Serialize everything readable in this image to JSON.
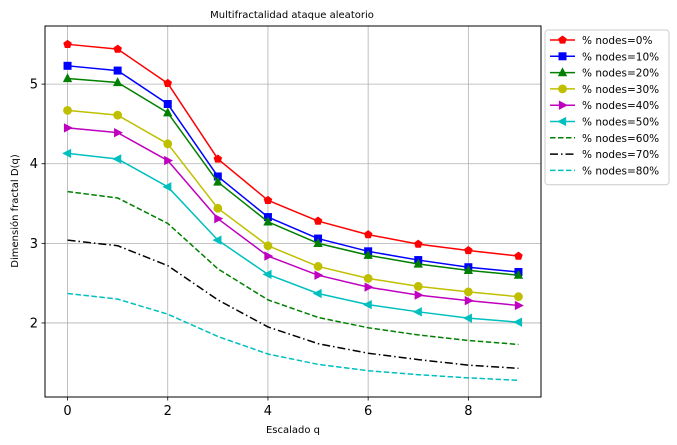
{
  "chart_data": {
    "type": "line",
    "title": "Multifractalidad ataque aleatorio",
    "xlabel": "Escalado q",
    "ylabel": "Dimensión fractal D(q)",
    "xlim": [
      -0.45,
      9.45
    ],
    "ylim": [
      1.07,
      5.73
    ],
    "xticks": [
      0,
      2,
      4,
      6,
      8
    ],
    "yticks": [
      2,
      3,
      4,
      5
    ],
    "grid": true,
    "legend_position": "outside-top-right",
    "x": [
      0,
      1,
      2,
      3,
      4,
      5,
      6,
      7,
      8,
      9
    ],
    "series": [
      {
        "name": "% nodes=0%",
        "color": "#ff0000",
        "style": "solid",
        "marker": "pentagon",
        "values": [
          5.5,
          5.44,
          5.01,
          4.06,
          3.54,
          3.28,
          3.11,
          2.99,
          2.91,
          2.84
        ]
      },
      {
        "name": "% nodes=10%",
        "color": "#0000ff",
        "style": "solid",
        "marker": "square",
        "values": [
          5.23,
          5.17,
          4.75,
          3.84,
          3.33,
          3.06,
          2.9,
          2.79,
          2.7,
          2.64
        ]
      },
      {
        "name": "% nodes=20%",
        "color": "#008000",
        "style": "solid",
        "marker": "triangle-up",
        "values": [
          5.07,
          5.02,
          4.64,
          3.77,
          3.27,
          3.0,
          2.85,
          2.74,
          2.66,
          2.6
        ]
      },
      {
        "name": "% nodes=30%",
        "color": "#bfbf00",
        "style": "solid",
        "marker": "circle",
        "values": [
          4.67,
          4.61,
          4.25,
          3.44,
          2.97,
          2.71,
          2.56,
          2.46,
          2.39,
          2.33
        ]
      },
      {
        "name": "% nodes=40%",
        "color": "#bf00bf",
        "style": "solid",
        "marker": "triangle-right",
        "values": [
          4.45,
          4.39,
          4.04,
          3.31,
          2.84,
          2.6,
          2.45,
          2.35,
          2.28,
          2.22
        ]
      },
      {
        "name": "% nodes=50%",
        "color": "#00bfbf",
        "style": "solid",
        "marker": "triangle-left",
        "values": [
          4.13,
          4.06,
          3.71,
          3.04,
          2.61,
          2.37,
          2.23,
          2.14,
          2.06,
          2.01
        ]
      },
      {
        "name": "% nodes=60%",
        "color": "#008000",
        "style": "dashed",
        "marker": "none",
        "values": [
          3.65,
          3.57,
          3.25,
          2.68,
          2.29,
          2.07,
          1.94,
          1.85,
          1.78,
          1.73
        ]
      },
      {
        "name": "% nodes=70%",
        "color": "#000000",
        "style": "dashdot",
        "marker": "none",
        "values": [
          3.04,
          2.97,
          2.72,
          2.29,
          1.95,
          1.74,
          1.62,
          1.54,
          1.47,
          1.43
        ]
      },
      {
        "name": "% nodes=80%",
        "color": "#00bfbf",
        "style": "dashed",
        "marker": "none",
        "values": [
          2.37,
          2.3,
          2.11,
          1.83,
          1.61,
          1.48,
          1.4,
          1.35,
          1.31,
          1.28
        ]
      }
    ]
  }
}
